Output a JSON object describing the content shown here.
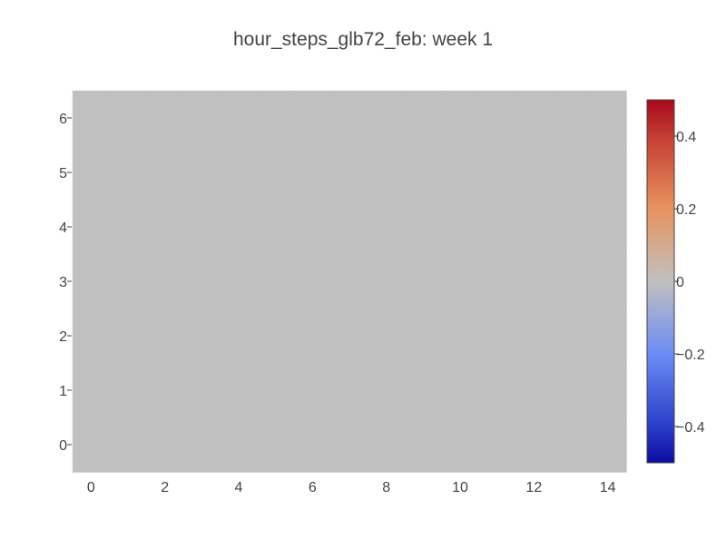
{
  "chart_data": {
    "type": "heatmap",
    "title": "hour_steps_glb72_feb: week 1",
    "xlabel": "",
    "ylabel": "",
    "x": [
      0,
      1,
      2,
      3,
      4,
      5,
      6,
      7,
      8,
      9,
      10,
      11,
      12,
      13,
      14
    ],
    "y": [
      0,
      1,
      2,
      3,
      4,
      5,
      6
    ],
    "z": [
      [
        0,
        0,
        0,
        0,
        0,
        0,
        0,
        0,
        0,
        0,
        0,
        0,
        0,
        0,
        0
      ],
      [
        0,
        0,
        0,
        0,
        0,
        0,
        0,
        0,
        0,
        0,
        0,
        0,
        0,
        0,
        0
      ],
      [
        0,
        0,
        0,
        0,
        0,
        0,
        0,
        0,
        0,
        0,
        0,
        0,
        0,
        0,
        0
      ],
      [
        0,
        0,
        0,
        0,
        0,
        0,
        0,
        0,
        0,
        0,
        0,
        0,
        0,
        0,
        0
      ],
      [
        0,
        0,
        0,
        0,
        0,
        0,
        0,
        0,
        0,
        0,
        0,
        0,
        0,
        0,
        0
      ],
      [
        0,
        0,
        0,
        0,
        0,
        0,
        0,
        0,
        0,
        0,
        0,
        0,
        0,
        0,
        0
      ],
      [
        0,
        0,
        0,
        0,
        0,
        0,
        0,
        0,
        0,
        0,
        0,
        0,
        0,
        0,
        0
      ]
    ],
    "xlim": [
      -0.5,
      14.5
    ],
    "ylim": [
      -0.5,
      6.5
    ],
    "x_ticks": [
      0,
      2,
      4,
      6,
      8,
      10,
      12,
      14
    ],
    "y_ticks": [
      0,
      1,
      2,
      3,
      4,
      5,
      6
    ],
    "colorbar": {
      "range": [
        -0.5,
        0.5
      ],
      "ticks": [
        0.4,
        0.2,
        0,
        -0.2,
        -0.4
      ],
      "tick_labels": [
        "0.4",
        "0.2",
        "0",
        "−0.2",
        "−0.4"
      ],
      "colorscale": [
        [
          0.0,
          "#0d0ba5"
        ],
        [
          0.1,
          "#2a3ec9"
        ],
        [
          0.3,
          "#6b8cf5"
        ],
        [
          0.5,
          "#c0c0c0"
        ],
        [
          0.7,
          "#e8935d"
        ],
        [
          0.9,
          "#c43d32"
        ],
        [
          1.0,
          "#a9091c"
        ]
      ]
    },
    "grid": false,
    "legend": "none"
  }
}
